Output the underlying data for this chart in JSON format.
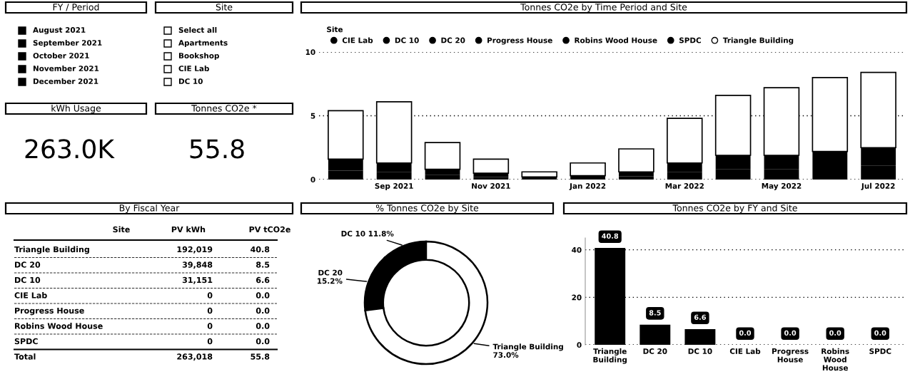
{
  "chart_data": [
    {
      "type": "other",
      "title": "FY / Period",
      "categories": [
        "August 2021",
        "September 2021",
        "October 2021",
        "November 2021",
        "December 2021"
      ],
      "colors": [
        "#000000",
        "#000000",
        "#000000",
        "#000000",
        "#000000"
      ]
    },
    {
      "type": "other",
      "title": "Site",
      "categories": [
        "Select all",
        "Apartments",
        "Bookshop",
        "CIE Lab",
        "DC 10"
      ],
      "colors": [
        "#ffffff",
        "#ffffff",
        "#ffffff",
        "#ffffff",
        "#ffffff"
      ]
    },
    {
      "type": "bar",
      "title": "Tonnes CO2e by Time Period and Site",
      "stacked": true,
      "legend": "top left",
      "legend_title": "Site",
      "grid": "y",
      "ylim": [
        0,
        10
      ],
      "yticks": [
        0,
        5,
        10
      ],
      "categories": [
        null,
        "Sep 2021",
        null,
        "Nov 2021",
        null,
        "Jan 2022",
        null,
        "Mar 2022",
        null,
        "May 2022",
        null,
        "Jul 2022"
      ],
      "series": [
        {
          "name": "CIE Lab",
          "color": "#000000",
          "values": [
            0,
            0,
            0,
            0,
            0,
            0,
            0,
            0,
            0,
            0,
            0,
            0
          ]
        },
        {
          "name": "DC 10",
          "color": "#000000",
          "values": [
            0.7,
            0.6,
            0.35,
            0.2,
            0,
            0,
            0.25,
            0.6,
            0.8,
            0.8,
            1.0,
            1.1
          ]
        },
        {
          "name": "DC 20",
          "color": "#000000",
          "values": [
            0.9,
            0.7,
            0.45,
            0.3,
            0.2,
            0.3,
            0.35,
            0.7,
            1.1,
            1.1,
            1.2,
            1.4
          ]
        },
        {
          "name": "Progress House",
          "color": "#000000",
          "values": [
            0,
            0,
            0,
            0,
            0,
            0,
            0,
            0,
            0,
            0,
            0,
            0
          ]
        },
        {
          "name": "Robins Wood House",
          "color": "#000000",
          "values": [
            0,
            0,
            0,
            0,
            0,
            0,
            0,
            0,
            0,
            0,
            0,
            0
          ]
        },
        {
          "name": "SPDC",
          "color": "#000000",
          "values": [
            0,
            0,
            0,
            0,
            0,
            0,
            0,
            0,
            0,
            0,
            0,
            0
          ]
        },
        {
          "name": "Triangle Building",
          "color": "#ffffff",
          "values": [
            3.8,
            4.8,
            2.1,
            1.1,
            0.4,
            1.0,
            1.8,
            3.5,
            4.7,
            5.3,
            5.8,
            5.9
          ]
        }
      ]
    },
    {
      "type": "other",
      "title": "kWh Usage",
      "annotations": [
        "263.0K"
      ]
    },
    {
      "type": "other",
      "title": "Tonnes CO2e *",
      "annotations": [
        "55.8"
      ]
    },
    {
      "type": "other",
      "title": "By Fiscal Year",
      "xlabel": "Site",
      "categories": [
        "Triangle Building",
        "DC 20",
        "DC 10",
        "CIE Lab",
        "Progress House",
        "Robins Wood House",
        "SPDC"
      ],
      "series": [
        {
          "name": "PV kWh",
          "values": [
            192019,
            39848,
            31151,
            0,
            0,
            0,
            0
          ],
          "value_labels": [
            "192,019",
            "39,848",
            "31,151",
            "0",
            "0",
            "0",
            "0"
          ]
        },
        {
          "name": "PV tCO2e",
          "values": [
            40.8,
            8.5,
            6.6,
            0,
            0,
            0,
            0
          ],
          "value_labels": [
            "40.8",
            "8.5",
            "6.6",
            "0.0",
            "0.0",
            "0.0",
            "0.0"
          ]
        }
      ],
      "annotations": [
        "Total"
      ],
      "totals": [
        "263,018",
        "55.8"
      ]
    },
    {
      "type": "donut",
      "title": "% Tonnes CO2e by Site",
      "categories": [
        "DC 10",
        "DC 20",
        "Triangle Building"
      ],
      "values": [
        11.8,
        15.2,
        73.0
      ],
      "colors": [
        "#000000",
        "#000000",
        "#ffffff"
      ],
      "value_labels": [
        "11.8%",
        "15.2%",
        "73.0%"
      ]
    },
    {
      "type": "bar",
      "title": "Tonnes CO2e by FY and Site",
      "categories": [
        "Triangle Building",
        "DC 20",
        "DC 10",
        "CIE Lab",
        "Progress House",
        "Robins Wood House",
        "SPDC"
      ],
      "values": [
        40.8,
        8.5,
        6.6,
        0,
        0,
        0,
        0
      ],
      "color": "#000000",
      "value_labels": [
        "40.8",
        "8.5",
        "6.6",
        "0.0",
        "0.0",
        "0.0",
        "0.0"
      ],
      "ylim": [
        0,
        45
      ],
      "yticks": [
        0,
        20,
        40
      ],
      "grid": "y"
    }
  ]
}
